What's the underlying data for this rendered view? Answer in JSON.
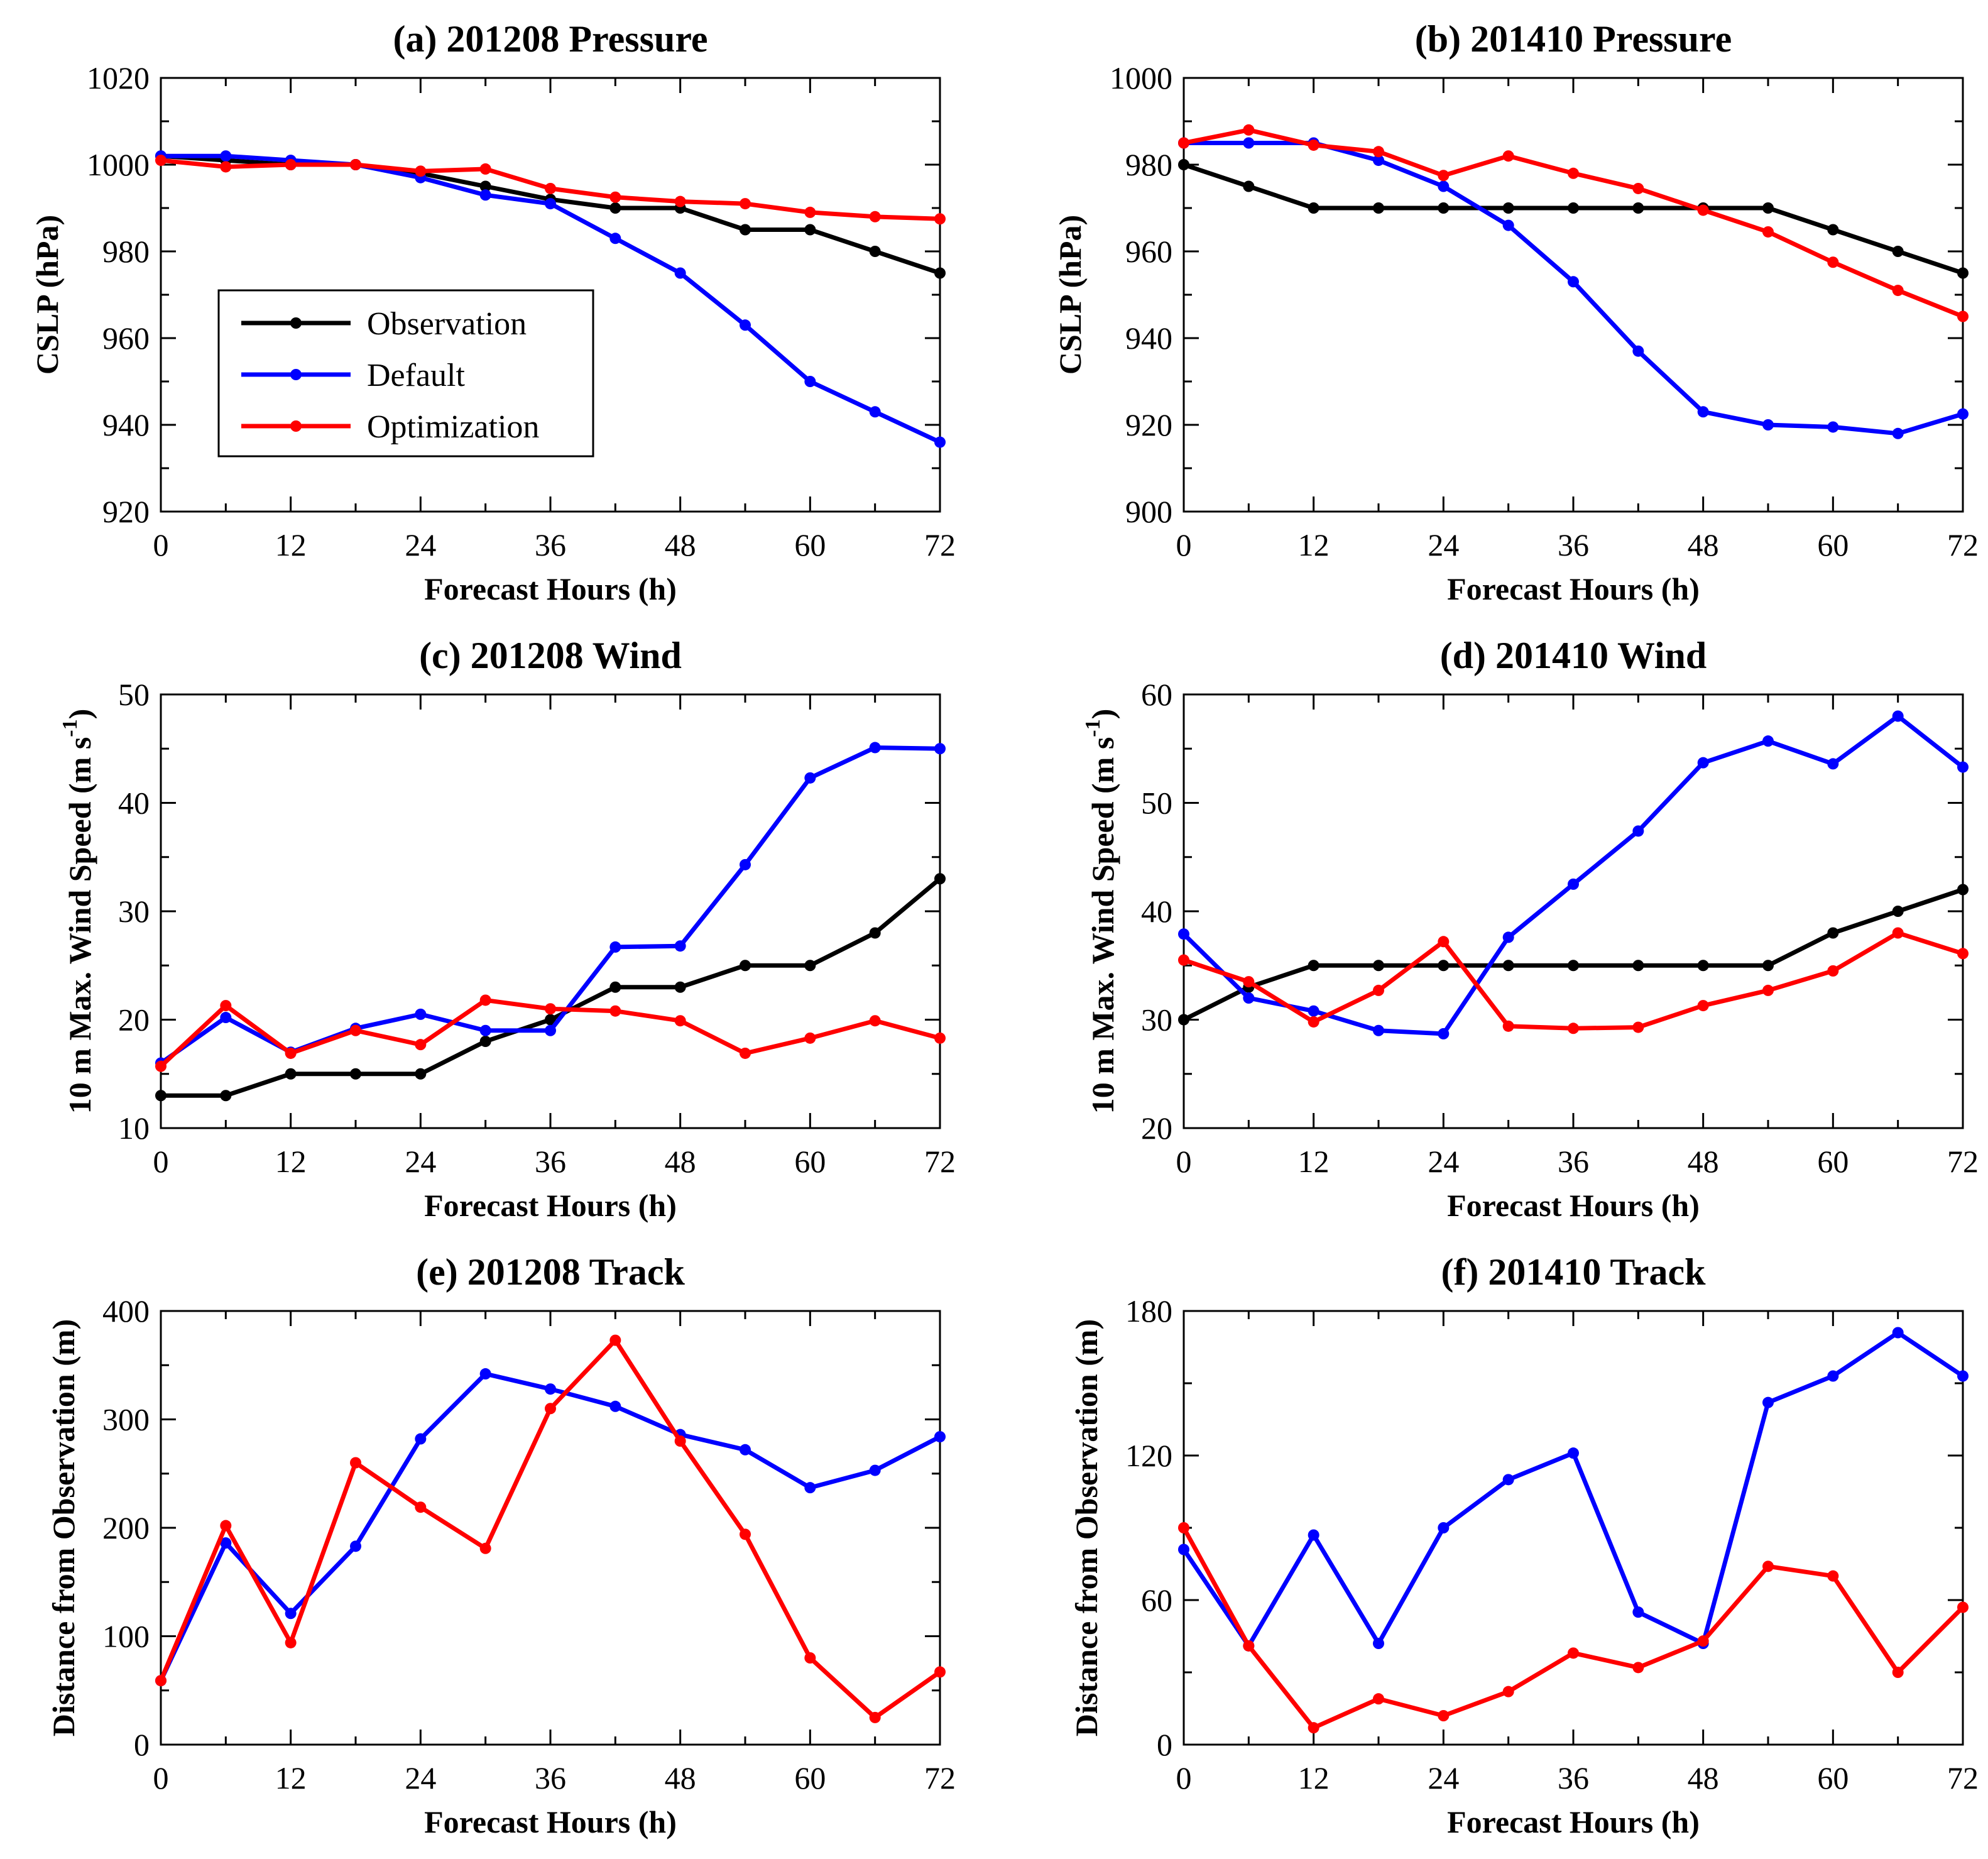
{
  "colors": {
    "Observation": "#000000",
    "Default": "#0000ff",
    "Optimization": "#ff0000"
  },
  "legend": {
    "entries": [
      "Observation",
      "Default",
      "Optimization"
    ],
    "placement": "left-center of panel (a)"
  },
  "chart_data": [
    {
      "type": "line",
      "title": "(a) 201208 Pressure",
      "xlabel": "Forecast Hours (h)",
      "ylabel": "CSLP (hPa)",
      "x": [
        0,
        6,
        12,
        18,
        24,
        30,
        36,
        42,
        48,
        54,
        60,
        66,
        72
      ],
      "xticks": [
        0,
        12,
        24,
        36,
        48,
        60,
        72
      ],
      "xlim": [
        0,
        72
      ],
      "ylim": [
        920,
        1020
      ],
      "yticks": [
        920,
        940,
        960,
        980,
        1000,
        1020
      ],
      "series": [
        {
          "name": "Observation",
          "values": [
            1002,
            1001,
            1000,
            1000,
            998,
            995,
            992,
            990,
            990,
            985,
            985,
            980,
            975
          ]
        },
        {
          "name": "Default",
          "values": [
            1002,
            1002,
            1001,
            1000,
            997,
            993,
            991,
            983,
            975,
            963,
            950,
            943,
            936
          ]
        },
        {
          "name": "Optimization",
          "values": [
            1001,
            999.5,
            1000,
            1000,
            998.5,
            999,
            994.5,
            992.5,
            991.5,
            991,
            989,
            988,
            987.5
          ]
        }
      ]
    },
    {
      "type": "line",
      "title": "(b) 201410 Pressure",
      "xlabel": "Forecast Hours (h)",
      "ylabel": "CSLP (hPa)",
      "x": [
        0,
        6,
        12,
        18,
        24,
        30,
        36,
        42,
        48,
        54,
        60,
        66,
        72
      ],
      "xticks": [
        0,
        12,
        24,
        36,
        48,
        60,
        72
      ],
      "xlim": [
        0,
        72
      ],
      "ylim": [
        900,
        1000
      ],
      "yticks": [
        900,
        920,
        940,
        960,
        980,
        1000
      ],
      "series": [
        {
          "name": "Observation",
          "values": [
            980,
            975,
            970,
            970,
            970,
            970,
            970,
            970,
            970,
            970,
            965,
            960,
            955
          ]
        },
        {
          "name": "Default",
          "values": [
            985,
            985,
            985,
            981,
            975,
            966,
            953,
            937,
            923,
            920,
            919.5,
            918,
            922.5
          ]
        },
        {
          "name": "Optimization",
          "values": [
            985,
            988,
            984.5,
            983,
            977.5,
            982,
            978,
            974.5,
            969.5,
            964.5,
            957.5,
            951,
            945
          ]
        }
      ]
    },
    {
      "type": "line",
      "title": "(c) 201208 Wind",
      "xlabel": "Forecast Hours (h)",
      "ylabel": "10 m Max. Wind Speed (m s",
      "ylabel_sup": "-1",
      "ylabel_tail": ")",
      "x": [
        0,
        6,
        12,
        18,
        24,
        30,
        36,
        42,
        48,
        54,
        60,
        66,
        72
      ],
      "xticks": [
        0,
        12,
        24,
        36,
        48,
        60,
        72
      ],
      "xlim": [
        0,
        72
      ],
      "ylim": [
        10,
        50
      ],
      "yticks": [
        10,
        20,
        30,
        40,
        50
      ],
      "series": [
        {
          "name": "Observation",
          "values": [
            13,
            13,
            15,
            15,
            15,
            18,
            20,
            23,
            23,
            25,
            25,
            28,
            33
          ]
        },
        {
          "name": "Default",
          "values": [
            16,
            20.2,
            17,
            19.2,
            20.5,
            19,
            19,
            26.7,
            26.8,
            34.3,
            42.3,
            45.1,
            45
          ]
        },
        {
          "name": "Optimization",
          "values": [
            15.7,
            21.3,
            16.9,
            19,
            17.7,
            21.8,
            21,
            20.8,
            19.9,
            16.9,
            18.3,
            19.9,
            18.3
          ]
        }
      ]
    },
    {
      "type": "line",
      "title": "(d) 201410 Wind",
      "xlabel": "Forecast Hours (h)",
      "ylabel": "10 m Max. Wind Speed (m s",
      "ylabel_sup": "-1",
      "ylabel_tail": ")",
      "x": [
        0,
        6,
        12,
        18,
        24,
        30,
        36,
        42,
        48,
        54,
        60,
        66,
        72
      ],
      "xticks": [
        0,
        12,
        24,
        36,
        48,
        60,
        72
      ],
      "xlim": [
        0,
        72
      ],
      "ylim": [
        20,
        60
      ],
      "yticks": [
        20,
        30,
        40,
        50,
        60
      ],
      "series": [
        {
          "name": "Observation",
          "values": [
            30,
            33,
            35,
            35,
            35,
            35,
            35,
            35,
            35,
            35,
            38,
            40,
            42
          ]
        },
        {
          "name": "Default",
          "values": [
            37.9,
            32,
            30.8,
            29,
            28.7,
            37.6,
            42.5,
            47.4,
            53.7,
            55.7,
            53.6,
            58,
            53.3
          ]
        },
        {
          "name": "Optimization",
          "values": [
            35.5,
            33.5,
            29.8,
            32.7,
            37.2,
            29.4,
            29.2,
            29.3,
            31.3,
            32.7,
            34.5,
            38,
            36.1
          ]
        }
      ]
    },
    {
      "type": "line",
      "title": "(e) 201208 Track",
      "xlabel": "Forecast Hours (h)",
      "ylabel": "Distance from Observation (m)",
      "x": [
        0,
        6,
        12,
        18,
        24,
        30,
        36,
        42,
        48,
        54,
        60,
        66,
        72
      ],
      "xticks": [
        0,
        12,
        24,
        36,
        48,
        60,
        72
      ],
      "xlim": [
        0,
        72
      ],
      "ylim": [
        0,
        400
      ],
      "yticks": [
        0,
        100,
        200,
        300,
        400
      ],
      "series": [
        {
          "name": "Default",
          "values": [
            59,
            186,
            121,
            183,
            282,
            342,
            328,
            312,
            286,
            272,
            237,
            253,
            284
          ]
        },
        {
          "name": "Optimization",
          "values": [
            59,
            202,
            94,
            260,
            219,
            181,
            310,
            373,
            280,
            194,
            80,
            25,
            67
          ]
        }
      ]
    },
    {
      "type": "line",
      "title": "(f) 201410 Track",
      "xlabel": "Forecast Hours (h)",
      "ylabel": "Distance from Observation (m)",
      "x": [
        0,
        6,
        12,
        18,
        24,
        30,
        36,
        42,
        48,
        54,
        60,
        66,
        72
      ],
      "xticks": [
        0,
        12,
        24,
        36,
        48,
        60,
        72
      ],
      "xlim": [
        0,
        72
      ],
      "ylim": [
        0,
        180
      ],
      "yticks": [
        0,
        60,
        120,
        180
      ],
      "series": [
        {
          "name": "Default",
          "values": [
            81,
            41,
            87,
            42,
            90,
            110,
            121,
            55,
            42,
            142,
            153,
            171,
            153
          ]
        },
        {
          "name": "Optimization",
          "values": [
            90,
            41,
            7,
            19,
            12,
            22,
            38,
            32,
            43,
            74,
            70,
            30,
            57
          ]
        }
      ]
    }
  ]
}
